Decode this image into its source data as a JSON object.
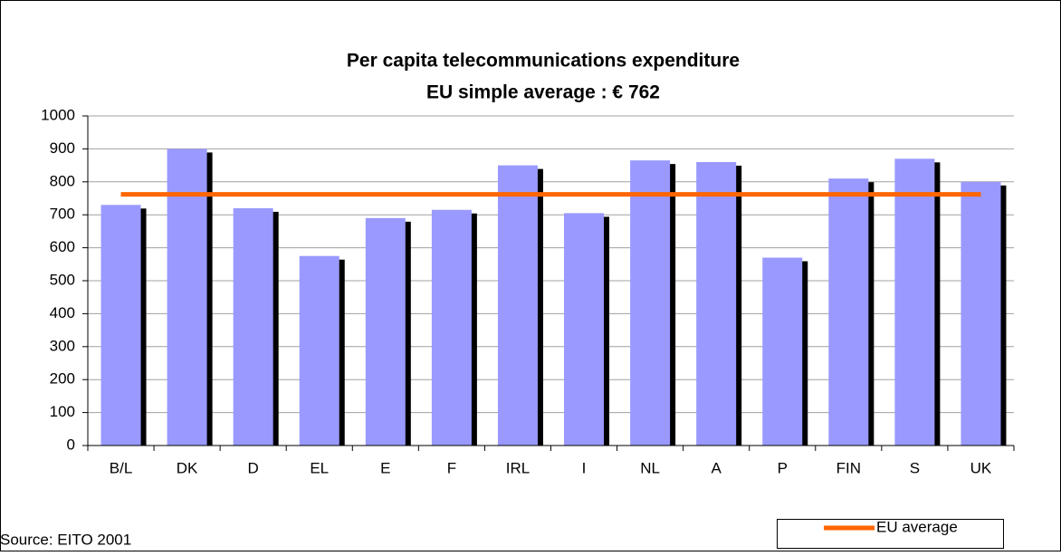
{
  "chart_data": {
    "type": "bar",
    "title": "Per capita telecommunications expenditure",
    "subtitle": "EU simple average : € 762",
    "source": "Source: EITO 2001",
    "categories": [
      "B/L",
      "DK",
      "D",
      "EL",
      "E",
      "F",
      "IRL",
      "I",
      "NL",
      "A",
      "P",
      "FIN",
      "S",
      "UK"
    ],
    "series": [
      {
        "color": "#9999ff",
        "values": [
          730,
          900,
          720,
          575,
          690,
          715,
          850,
          705,
          865,
          860,
          570,
          810,
          870,
          800
        ]
      },
      {
        "name": "EU average",
        "type": "line",
        "color": "#ff6600",
        "values": [
          762,
          762,
          762,
          762,
          762,
          762,
          762,
          762,
          762,
          762,
          762,
          762,
          762,
          762
        ]
      }
    ],
    "ylim": [
      0,
      1000
    ],
    "yticks": [
      0,
      100,
      200,
      300,
      400,
      500,
      600,
      700,
      800,
      900,
      1000
    ],
    "grid": true,
    "legend": "bottom-right"
  }
}
